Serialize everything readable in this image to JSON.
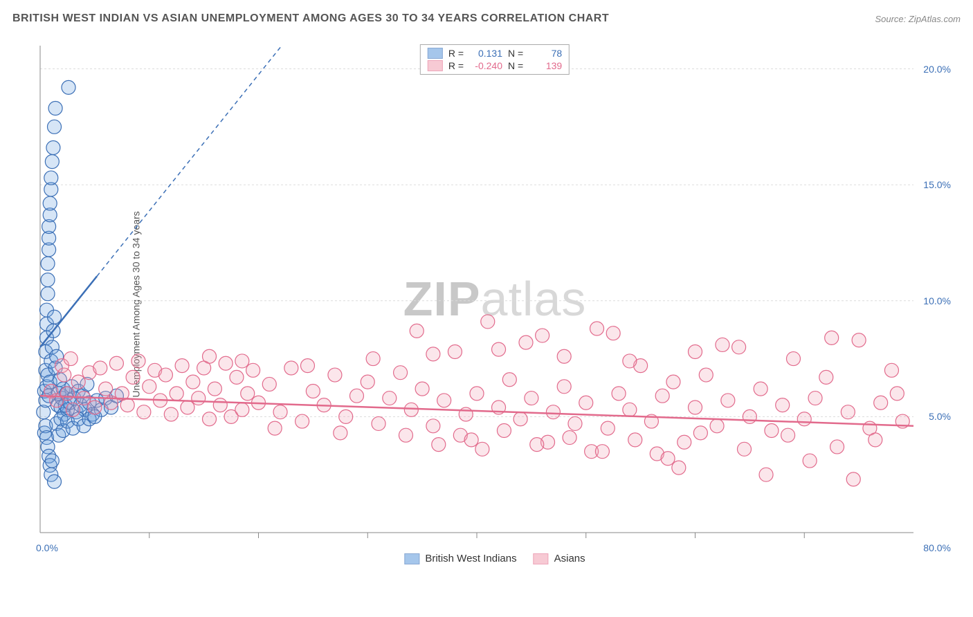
{
  "header": {
    "title": "BRITISH WEST INDIAN VS ASIAN UNEMPLOYMENT AMONG AGES 30 TO 34 YEARS CORRELATION CHART",
    "source": "Source: ZipAtlas.com"
  },
  "ylabel": "Unemployment Among Ages 30 to 34 years",
  "watermark": {
    "prefix": "ZIP",
    "suffix": "atlas"
  },
  "chart": {
    "type": "scatter",
    "background_color": "#ffffff",
    "grid_color": "#dcdcdc",
    "axis_color": "#888888",
    "xlim": [
      0,
      80
    ],
    "ylim": [
      0,
      21
    ],
    "x_ticks": [
      0,
      80
    ],
    "y_ticks": [
      5,
      10,
      15,
      20
    ],
    "x_tick_format": "{v}.0%",
    "y_tick_format": "{v}.0%",
    "tick_color_x": "#3b6fb6",
    "tick_color_y": "#3b6fb6",
    "marker_radius": 10,
    "marker_stroke_width": 1.2,
    "marker_fill_opacity": 0.28
  },
  "series": [
    {
      "id": "bwi",
      "label": "British West Indians",
      "color": "#6aa1de",
      "stroke": "#3b6fb6",
      "R": "0.131",
      "N": "78",
      "stat_color": "#3b6fb6",
      "trend": {
        "x1": 0,
        "y1": 8.0,
        "x2": 80,
        "y2": 55,
        "solid_until_x": 5.2,
        "dash": "6,5"
      },
      "points": [
        [
          0.3,
          5.2
        ],
        [
          0.4,
          6.1
        ],
        [
          0.5,
          7.0
        ],
        [
          0.5,
          7.8
        ],
        [
          0.6,
          8.4
        ],
        [
          0.6,
          9.0
        ],
        [
          0.6,
          9.6
        ],
        [
          0.7,
          10.3
        ],
        [
          0.7,
          10.9
        ],
        [
          0.7,
          11.6
        ],
        [
          0.8,
          12.2
        ],
        [
          0.8,
          12.7
        ],
        [
          0.8,
          13.2
        ],
        [
          0.9,
          13.7
        ],
        [
          0.9,
          14.2
        ],
        [
          1.0,
          14.8
        ],
        [
          1.0,
          15.3
        ],
        [
          1.1,
          16.0
        ],
        [
          1.2,
          16.6
        ],
        [
          1.3,
          17.5
        ],
        [
          1.4,
          18.3
        ],
        [
          2.6,
          19.2
        ],
        [
          0.4,
          4.3
        ],
        [
          0.5,
          5.7
        ],
        [
          0.6,
          6.3
        ],
        [
          0.7,
          6.8
        ],
        [
          0.8,
          5.9
        ],
        [
          0.9,
          6.5
        ],
        [
          1.0,
          7.4
        ],
        [
          1.1,
          8.0
        ],
        [
          1.2,
          8.7
        ],
        [
          1.3,
          9.3
        ],
        [
          1.4,
          7.1
        ],
        [
          1.5,
          7.6
        ],
        [
          1.6,
          5.5
        ],
        [
          1.7,
          6.0
        ],
        [
          1.8,
          6.6
        ],
        [
          1.9,
          5.4
        ],
        [
          2.0,
          5.8
        ],
        [
          2.1,
          6.2
        ],
        [
          2.2,
          5.1
        ],
        [
          2.3,
          5.5
        ],
        [
          2.4,
          6.0
        ],
        [
          2.5,
          5.3
        ],
        [
          2.7,
          5.6
        ],
        [
          2.9,
          6.3
        ],
        [
          3.1,
          5.8
        ],
        [
          3.3,
          5.2
        ],
        [
          3.5,
          6.1
        ],
        [
          3.7,
          5.5
        ],
        [
          3.9,
          5.9
        ],
        [
          4.1,
          5.3
        ],
        [
          4.3,
          6.4
        ],
        [
          4.5,
          5.6
        ],
        [
          4.8,
          5.1
        ],
        [
          5.2,
          5.7
        ],
        [
          5.6,
          5.3
        ],
        [
          6.0,
          5.8
        ],
        [
          6.5,
          5.4
        ],
        [
          7.0,
          5.9
        ],
        [
          0.5,
          4.6
        ],
        [
          0.6,
          4.1
        ],
        [
          0.7,
          3.7
        ],
        [
          0.8,
          3.3
        ],
        [
          0.9,
          2.9
        ],
        [
          1.0,
          2.5
        ],
        [
          1.1,
          3.1
        ],
        [
          1.3,
          2.2
        ],
        [
          1.5,
          4.7
        ],
        [
          1.7,
          4.2
        ],
        [
          1.9,
          4.9
        ],
        [
          2.1,
          4.4
        ],
        [
          2.5,
          4.8
        ],
        [
          3.0,
          4.5
        ],
        [
          3.5,
          4.9
        ],
        [
          4.0,
          4.6
        ],
        [
          4.5,
          4.9
        ],
        [
          5.0,
          5.0
        ]
      ]
    },
    {
      "id": "asian",
      "label": "Asians",
      "color": "#f2a7b8",
      "stroke": "#e26a8c",
      "R": "-0.240",
      "N": "139",
      "stat_color": "#e26a8c",
      "trend": {
        "x1": 0,
        "y1": 5.9,
        "x2": 80,
        "y2": 4.6,
        "solid_until_x": 80,
        "dash": ""
      },
      "points": [
        [
          1.0,
          6.1
        ],
        [
          1.5,
          5.7
        ],
        [
          2.0,
          7.2
        ],
        [
          2.2,
          6.8
        ],
        [
          2.5,
          6.0
        ],
        [
          2.8,
          7.5
        ],
        [
          3.0,
          5.3
        ],
        [
          3.5,
          6.5
        ],
        [
          4.0,
          5.8
        ],
        [
          4.5,
          6.9
        ],
        [
          5.0,
          5.4
        ],
        [
          5.5,
          7.1
        ],
        [
          6.0,
          6.2
        ],
        [
          6.5,
          5.6
        ],
        [
          7.0,
          7.3
        ],
        [
          7.5,
          6.0
        ],
        [
          8.0,
          5.5
        ],
        [
          8.5,
          6.7
        ],
        [
          9.0,
          7.4
        ],
        [
          9.5,
          5.2
        ],
        [
          10.0,
          6.3
        ],
        [
          10.5,
          7.0
        ],
        [
          11.0,
          5.7
        ],
        [
          11.5,
          6.8
        ],
        [
          12.0,
          5.1
        ],
        [
          12.5,
          6.0
        ],
        [
          13.0,
          7.2
        ],
        [
          13.5,
          5.4
        ],
        [
          14.0,
          6.5
        ],
        [
          14.5,
          5.8
        ],
        [
          15.0,
          7.1
        ],
        [
          15.5,
          4.9
        ],
        [
          16.0,
          6.2
        ],
        [
          16.5,
          5.5
        ],
        [
          17.0,
          7.3
        ],
        [
          17.5,
          5.0
        ],
        [
          18.0,
          6.7
        ],
        [
          18.5,
          5.3
        ],
        [
          19.0,
          6.0
        ],
        [
          19.5,
          7.0
        ],
        [
          20.0,
          5.6
        ],
        [
          21.0,
          6.4
        ],
        [
          22.0,
          5.2
        ],
        [
          23.0,
          7.1
        ],
        [
          24.0,
          4.8
        ],
        [
          25.0,
          6.1
        ],
        [
          26.0,
          5.5
        ],
        [
          27.0,
          6.8
        ],
        [
          28.0,
          5.0
        ],
        [
          29.0,
          5.9
        ],
        [
          30.0,
          6.5
        ],
        [
          31.0,
          4.7
        ],
        [
          32.0,
          5.8
        ],
        [
          33.0,
          6.9
        ],
        [
          34.0,
          5.3
        ],
        [
          35.0,
          6.2
        ],
        [
          36.0,
          4.6
        ],
        [
          37.0,
          5.7
        ],
        [
          38.0,
          7.8
        ],
        [
          39.0,
          5.1
        ],
        [
          40.0,
          6.0
        ],
        [
          41.0,
          9.1
        ],
        [
          42.0,
          5.4
        ],
        [
          43.0,
          6.6
        ],
        [
          44.0,
          4.9
        ],
        [
          45.0,
          5.8
        ],
        [
          46.0,
          8.5
        ],
        [
          47.0,
          5.2
        ],
        [
          48.0,
          6.3
        ],
        [
          49.0,
          4.7
        ],
        [
          50.0,
          5.6
        ],
        [
          51.0,
          8.8
        ],
        [
          52.0,
          4.5
        ],
        [
          53.0,
          6.0
        ],
        [
          54.0,
          5.3
        ],
        [
          55.0,
          7.2
        ],
        [
          56.0,
          4.8
        ],
        [
          57.0,
          5.9
        ],
        [
          58.0,
          6.5
        ],
        [
          59.0,
          3.9
        ],
        [
          60.0,
          5.4
        ],
        [
          61.0,
          6.8
        ],
        [
          62.0,
          4.6
        ],
        [
          63.0,
          5.7
        ],
        [
          64.0,
          8.0
        ],
        [
          65.0,
          5.0
        ],
        [
          66.0,
          6.2
        ],
        [
          67.0,
          4.4
        ],
        [
          68.0,
          5.5
        ],
        [
          69.0,
          7.5
        ],
        [
          70.0,
          4.9
        ],
        [
          71.0,
          5.8
        ],
        [
          72.0,
          6.7
        ],
        [
          73.0,
          3.7
        ],
        [
          74.0,
          5.2
        ],
        [
          75.0,
          8.3
        ],
        [
          76.0,
          4.5
        ],
        [
          77.0,
          5.6
        ],
        [
          78.0,
          7.0
        ],
        [
          79.0,
          4.8
        ],
        [
          34.5,
          8.7
        ],
        [
          36.5,
          3.8
        ],
        [
          38.5,
          4.2
        ],
        [
          40.5,
          3.6
        ],
        [
          42.5,
          4.4
        ],
        [
          44.5,
          8.2
        ],
        [
          46.5,
          3.9
        ],
        [
          48.5,
          4.1
        ],
        [
          50.5,
          3.5
        ],
        [
          52.5,
          8.6
        ],
        [
          54.5,
          4.0
        ],
        [
          56.5,
          3.4
        ],
        [
          58.5,
          2.8
        ],
        [
          60.5,
          4.3
        ],
        [
          62.5,
          8.1
        ],
        [
          64.5,
          3.6
        ],
        [
          66.5,
          2.5
        ],
        [
          68.5,
          4.2
        ],
        [
          70.5,
          3.1
        ],
        [
          72.5,
          8.4
        ],
        [
          74.5,
          2.3
        ],
        [
          76.5,
          4.0
        ],
        [
          78.5,
          6.0
        ],
        [
          15.5,
          7.6
        ],
        [
          18.5,
          7.4
        ],
        [
          21.5,
          4.5
        ],
        [
          24.5,
          7.2
        ],
        [
          27.5,
          4.3
        ],
        [
          30.5,
          7.5
        ],
        [
          33.5,
          4.2
        ],
        [
          36.0,
          7.7
        ],
        [
          39.5,
          4.0
        ],
        [
          42.0,
          7.9
        ],
        [
          45.5,
          3.8
        ],
        [
          48.0,
          7.6
        ],
        [
          51.5,
          3.5
        ],
        [
          54.0,
          7.4
        ],
        [
          57.5,
          3.2
        ],
        [
          60.0,
          7.8
        ]
      ]
    }
  ],
  "legend_top": {
    "r_label": "R =",
    "n_label": "N ="
  }
}
